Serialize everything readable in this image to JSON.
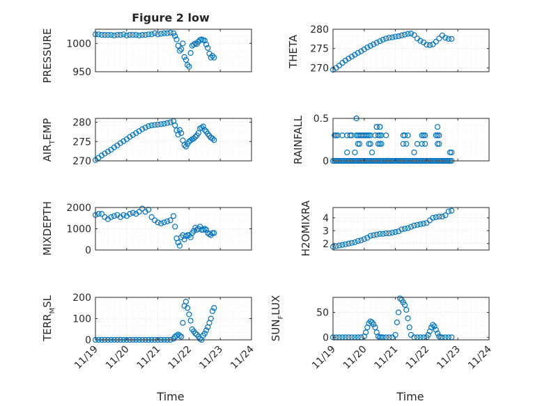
{
  "title": "Figure 2 low",
  "x_label": "Time",
  "x_ticks": [
    "11/19",
    "11/20",
    "11/21",
    "11/22",
    "11/23",
    "11/24"
  ],
  "marker_color": "#0072BD",
  "chart_data": [
    {
      "type": "scatter",
      "name": "PRESSURE",
      "ylabel": "PRESSURE",
      "ylim": [
        950,
        1025
      ],
      "yticks": [
        950,
        1000
      ],
      "xlim": [
        0,
        5
      ],
      "x": [
        0,
        0.1,
        0.2,
        0.3,
        0.4,
        0.5,
        0.6,
        0.7,
        0.8,
        0.9,
        1.0,
        1.1,
        1.2,
        1.3,
        1.4,
        1.5,
        1.6,
        1.7,
        1.8,
        1.9,
        2.0,
        2.1,
        2.2,
        2.3,
        2.4,
        2.5,
        2.55,
        2.6,
        2.65,
        2.7,
        2.75,
        2.8,
        2.85,
        2.9,
        2.95,
        3.0,
        3.05,
        3.1,
        3.15,
        3.2,
        3.25,
        3.3,
        3.35,
        3.4,
        3.45,
        3.5,
        3.55,
        3.6,
        3.65,
        3.7,
        3.75,
        3.8
      ],
      "y": [
        1016,
        1016,
        1015,
        1015,
        1015,
        1015,
        1014,
        1015,
        1015,
        1016,
        1014,
        1015,
        1015,
        1015,
        1014,
        1015,
        1015,
        1016,
        1016,
        1018,
        1016,
        1017,
        1018,
        1018,
        1019,
        1018,
        1013,
        1007,
        996,
        987,
        990,
        1000,
        976,
        971,
        962,
        959,
        983,
        996,
        998,
        1000,
        999,
        1003,
        1006,
        1007,
        1006,
        1005,
        998,
        992,
        982,
        975,
        978,
        975
      ]
    },
    {
      "type": "scatter",
      "name": "THETA",
      "ylabel": "THETA",
      "ylim": [
        269,
        280
      ],
      "yticks": [
        270,
        275,
        280
      ],
      "xlim": [
        0,
        5
      ],
      "x": [
        0,
        0.1,
        0.2,
        0.3,
        0.4,
        0.5,
        0.6,
        0.7,
        0.8,
        0.9,
        1.0,
        1.1,
        1.2,
        1.3,
        1.4,
        1.5,
        1.6,
        1.7,
        1.8,
        1.9,
        2.0,
        2.1,
        2.2,
        2.3,
        2.4,
        2.5,
        2.6,
        2.7,
        2.8,
        2.9,
        3.0,
        3.1,
        3.2,
        3.3,
        3.4,
        3.5,
        3.6,
        3.7,
        3.8
      ],
      "y": [
        269.5,
        270,
        270.6,
        271.3,
        271.9,
        272.4,
        272.9,
        273.4,
        273.9,
        274.3,
        274.8,
        275.3,
        275.7,
        276.1,
        276.5,
        276.9,
        277.3,
        277.6,
        277.8,
        277.9,
        278.1,
        278.2,
        278.4,
        278.6,
        278.8,
        278.9,
        278.5,
        277.6,
        277,
        276.6,
        276,
        275.9,
        276.1,
        276.8,
        277.6,
        278.4,
        277.8,
        277.5,
        277.5
      ]
    },
    {
      "type": "scatter",
      "name": "AIR_TEMP",
      "ylabel": "AIR_TEMP",
      "ylim": [
        270,
        281
      ],
      "yticks": [
        270,
        275,
        280
      ],
      "xlim": [
        0,
        5
      ],
      "x": [
        0,
        0.1,
        0.2,
        0.3,
        0.4,
        0.5,
        0.6,
        0.7,
        0.8,
        0.9,
        1.0,
        1.1,
        1.2,
        1.3,
        1.4,
        1.5,
        1.6,
        1.7,
        1.8,
        1.9,
        2.0,
        2.1,
        2.2,
        2.3,
        2.4,
        2.5,
        2.55,
        2.6,
        2.65,
        2.7,
        2.75,
        2.8,
        2.85,
        2.9,
        2.95,
        3.0,
        3.05,
        3.1,
        3.15,
        3.2,
        3.25,
        3.3,
        3.35,
        3.4,
        3.45,
        3.5,
        3.55,
        3.6,
        3.65,
        3.7,
        3.75,
        3.8
      ],
      "y": [
        270.2,
        270.8,
        271.4,
        271.9,
        272.4,
        272.9,
        273.5,
        274,
        274.6,
        275.1,
        275.6,
        276.2,
        276.7,
        277.2,
        277.7,
        278.2,
        278.6,
        279,
        279.2,
        279.3,
        279.4,
        279.5,
        279.6,
        279.8,
        280,
        280.3,
        279.2,
        277.9,
        276.8,
        278,
        277.2,
        275.3,
        274.1,
        273.7,
        274.4,
        275,
        275.3,
        275.6,
        275.8,
        276.2,
        276.6,
        277.2,
        278.4,
        278.6,
        278.9,
        278,
        277.6,
        277,
        276.5,
        276,
        275.8,
        275.4
      ]
    },
    {
      "type": "scatter",
      "name": "RAINFALL",
      "ylabel": "RAINFALL",
      "ylim": [
        0,
        0.5
      ],
      "yticks": [
        0,
        0.5
      ],
      "xlim": [
        0,
        5
      ],
      "x": [
        0,
        0.05,
        0.1,
        0.15,
        0.2,
        0.25,
        0.3,
        0.35,
        0.4,
        0.45,
        0.5,
        0.55,
        0.6,
        0.65,
        0.7,
        0.75,
        0.8,
        0.85,
        0.9,
        0.95,
        1.0,
        1.05,
        1.1,
        1.15,
        1.2,
        1.25,
        1.3,
        1.35,
        1.4,
        1.45,
        1.5,
        1.55,
        1.6,
        1.65,
        1.7,
        1.75,
        1.8,
        1.85,
        1.9,
        1.95,
        2.0,
        2.05,
        2.1,
        2.15,
        2.2,
        2.25,
        2.3,
        2.35,
        2.4,
        2.45,
        2.5,
        2.55,
        2.6,
        2.65,
        2.7,
        2.75,
        2.8,
        2.85,
        2.9,
        2.95,
        3.0,
        3.05,
        3.1,
        3.15,
        3.2,
        3.25,
        3.3,
        3.35,
        3.4,
        3.45,
        3.5,
        3.55,
        3.6,
        3.65,
        3.7,
        3.75,
        3.8,
        0.05,
        0.1,
        0.15,
        0.3,
        0.45,
        0.55,
        0.6,
        0.75,
        0.8,
        0.85,
        0.9,
        1.1,
        1.15,
        1.2,
        1.35,
        1.45,
        1.5,
        1.55,
        2.25,
        2.3,
        2.4,
        2.85,
        2.9,
        2.95,
        3.3,
        3.35,
        3.4,
        0.95,
        1.0,
        1.05,
        1.4,
        1.5,
        1.7,
        0.45,
        0.7,
        0.8,
        0.85,
        1.15,
        1.2,
        1.25,
        1.45,
        1.5,
        2.6,
        2.7,
        2.85,
        2.95,
        3.35,
        3.4,
        3.75,
        3.8,
        0.75,
        1.4,
        1.5,
        1.55,
        2.25,
        2.35,
        3.35
      ],
      "y": [
        0,
        0,
        0,
        0,
        0,
        0,
        0,
        0,
        0,
        0,
        0,
        0,
        0,
        0,
        0,
        0,
        0,
        0,
        0,
        0,
        0,
        0,
        0,
        0,
        0,
        0,
        0,
        0,
        0,
        0,
        0,
        0,
        0,
        0,
        0,
        0,
        0,
        0,
        0,
        0,
        0,
        0,
        0,
        0,
        0,
        0,
        0,
        0,
        0,
        0,
        0,
        0,
        0,
        0,
        0,
        0,
        0,
        0,
        0,
        0,
        0,
        0,
        0,
        0,
        0,
        0,
        0,
        0,
        0,
        0,
        0,
        0,
        0,
        0,
        0,
        0,
        0,
        0.3,
        0.3,
        0.3,
        0.3,
        0.3,
        0.3,
        0.3,
        0.3,
        0.3,
        0.3,
        0.3,
        0.3,
        0.3,
        0.3,
        0.3,
        0.3,
        0.3,
        0.3,
        0.3,
        0.3,
        0.3,
        0.3,
        0.3,
        0.3,
        0.3,
        0.3,
        0.3,
        0.3,
        0.3,
        0.3,
        0.4,
        0.4,
        0.3,
        0.1,
        0.1,
        0.2,
        0.2,
        0.2,
        0.2,
        0.1,
        0.2,
        0.2,
        0.1,
        0.2,
        0.2,
        0.2,
        0.2,
        0.2,
        0.1,
        0.1,
        0.5,
        0.4,
        0.4,
        0.2,
        0.2,
        0.2,
        0.4
      ]
    },
    {
      "type": "scatter",
      "name": "MIXDEPTH",
      "ylabel": "MIXDEPTH",
      "ylim": [
        0,
        2000
      ],
      "yticks": [
        0,
        1000,
        2000
      ],
      "xlim": [
        0,
        5
      ],
      "x": [
        0,
        0.1,
        0.2,
        0.3,
        0.4,
        0.5,
        0.6,
        0.7,
        0.8,
        0.9,
        1.0,
        1.1,
        1.2,
        1.3,
        1.4,
        1.5,
        1.6,
        1.7,
        1.8,
        1.9,
        2.0,
        2.1,
        2.2,
        2.3,
        2.4,
        2.5,
        2.55,
        2.6,
        2.65,
        2.7,
        2.75,
        2.8,
        2.85,
        2.9,
        2.95,
        3.0,
        3.05,
        3.1,
        3.15,
        3.2,
        3.25,
        3.3,
        3.35,
        3.4,
        3.45,
        3.5,
        3.55,
        3.6,
        3.65,
        3.7,
        3.75,
        3.8
      ],
      "y": [
        1650,
        1700,
        1700,
        1550,
        1450,
        1550,
        1600,
        1650,
        1550,
        1650,
        1600,
        1700,
        1750,
        1700,
        1800,
        1950,
        1800,
        1900,
        1550,
        1400,
        1300,
        1250,
        1300,
        1350,
        1400,
        1600,
        1100,
        550,
        350,
        200,
        600,
        700,
        500,
        650,
        700,
        700,
        600,
        800,
        900,
        1050,
        950,
        1000,
        1100,
        950,
        950,
        1000,
        950,
        800,
        750,
        700,
        800,
        800
      ]
    },
    {
      "type": "scatter",
      "name": "H2OMIXRA",
      "ylabel": "H2OMIXRA",
      "ylim": [
        1.5,
        4.8
      ],
      "yticks": [
        2,
        3,
        4
      ],
      "xlim": [
        0,
        5
      ],
      "x": [
        0,
        0.1,
        0.2,
        0.3,
        0.4,
        0.5,
        0.6,
        0.7,
        0.8,
        0.9,
        1.0,
        1.1,
        1.2,
        1.3,
        1.4,
        1.5,
        1.6,
        1.7,
        1.8,
        1.9,
        2.0,
        2.1,
        2.2,
        2.3,
        2.4,
        2.5,
        2.6,
        2.7,
        2.8,
        2.9,
        3.0,
        3.1,
        3.2,
        3.3,
        3.4,
        3.5,
        3.6,
        3.7,
        3.8
      ],
      "y": [
        1.75,
        1.8,
        1.85,
        1.9,
        1.95,
        2.0,
        2.05,
        2.1,
        2.2,
        2.25,
        2.35,
        2.45,
        2.6,
        2.65,
        2.7,
        2.75,
        2.75,
        2.8,
        2.8,
        2.85,
        2.9,
        2.95,
        3.1,
        3.15,
        3.2,
        3.3,
        3.4,
        3.45,
        3.5,
        3.55,
        3.6,
        3.8,
        4.0,
        4.05,
        4.1,
        4.1,
        4.2,
        4.5,
        4.55
      ]
    },
    {
      "type": "scatter",
      "name": "TERR_MSL",
      "ylabel": "TERR_MSL",
      "ylim": [
        0,
        200
      ],
      "yticks": [
        0,
        100,
        200
      ],
      "xlim": [
        0,
        5
      ],
      "x": [
        0,
        0.1,
        0.2,
        0.3,
        0.4,
        0.5,
        0.6,
        0.7,
        0.8,
        0.9,
        1.0,
        1.1,
        1.2,
        1.3,
        1.4,
        1.5,
        1.6,
        1.7,
        1.8,
        1.9,
        2.0,
        2.1,
        2.2,
        2.3,
        2.4,
        2.5,
        2.55,
        2.6,
        2.65,
        2.7,
        2.75,
        2.8,
        2.85,
        2.9,
        2.95,
        3.0,
        3.05,
        3.1,
        3.15,
        3.2,
        3.25,
        3.3,
        3.35,
        3.4,
        3.45,
        3.5,
        3.55,
        3.6,
        3.65,
        3.7,
        3.75,
        3.8
      ],
      "y": [
        0,
        0,
        0,
        0,
        0,
        0,
        0,
        0,
        0,
        0,
        0,
        0,
        0,
        0,
        0,
        0,
        0,
        0,
        0,
        0,
        0,
        0,
        0,
        0,
        0,
        5,
        15,
        20,
        25,
        20,
        15,
        80,
        160,
        180,
        150,
        120,
        90,
        50,
        40,
        30,
        25,
        15,
        5,
        0,
        20,
        30,
        45,
        60,
        80,
        100,
        135,
        150
      ]
    },
    {
      "type": "scatter",
      "name": "SUN_FLUX",
      "ylabel": "SUN_FLUX",
      "ylim": [
        -5,
        80
      ],
      "yticks": [
        0,
        50
      ],
      "xlim": [
        0,
        5
      ],
      "x": [
        0,
        0.1,
        0.2,
        0.3,
        0.4,
        0.5,
        0.6,
        0.7,
        0.8,
        0.9,
        1.0,
        1.05,
        1.1,
        1.15,
        1.2,
        1.25,
        1.3,
        1.35,
        1.4,
        1.45,
        1.5,
        1.55,
        1.6,
        1.7,
        1.8,
        1.9,
        2.0,
        2.05,
        2.1,
        2.15,
        2.2,
        2.25,
        2.3,
        2.35,
        2.4,
        2.45,
        2.5,
        2.6,
        2.7,
        2.8,
        2.9,
        3.0,
        3.05,
        3.1,
        3.15,
        3.2,
        3.25,
        3.3,
        3.35,
        3.4,
        3.45,
        3.5,
        3.6,
        3.7,
        3.8
      ],
      "y": [
        0,
        0,
        0,
        0,
        0,
        0,
        0,
        0,
        0,
        0,
        2,
        10,
        20,
        28,
        32,
        30,
        26,
        20,
        10,
        2,
        0,
        0,
        0,
        0,
        0,
        0,
        5,
        30,
        50,
        78,
        75,
        70,
        65,
        55,
        38,
        20,
        5,
        0,
        0,
        0,
        0,
        0,
        5,
        12,
        20,
        25,
        22,
        15,
        8,
        2,
        0,
        0,
        0,
        0,
        0
      ]
    }
  ]
}
